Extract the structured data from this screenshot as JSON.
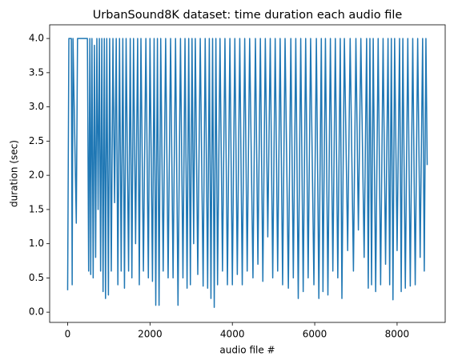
{
  "chart_data": {
    "type": "line",
    "title": "UrbanSound8K dataset: time duration each audio file",
    "x_label": "audio file #",
    "y_label": "duration (sec)",
    "x": [
      0,
      30,
      90,
      110,
      130,
      210,
      240,
      480,
      510,
      540,
      560,
      590,
      620,
      650,
      680,
      710,
      740,
      770,
      800,
      830,
      860,
      890,
      920,
      950,
      990,
      1020,
      1060,
      1100,
      1140,
      1180,
      1220,
      1260,
      1300,
      1340,
      1380,
      1420,
      1480,
      1520,
      1560,
      1600,
      1650,
      1700,
      1740,
      1780,
      1840,
      1900,
      1960,
      2000,
      2060,
      2100,
      2140,
      2180,
      2220,
      2260,
      2320,
      2380,
      2440,
      2500,
      2560,
      2620,
      2680,
      2740,
      2800,
      2850,
      2900,
      2940,
      2980,
      3020,
      3060,
      3100,
      3160,
      3220,
      3290,
      3340,
      3400,
      3440,
      3480,
      3520,
      3560,
      3600,
      3640,
      3700,
      3760,
      3820,
      3880,
      3940,
      4000,
      4060,
      4120,
      4180,
      4240,
      4300,
      4360,
      4420,
      4500,
      4560,
      4620,
      4680,
      4740,
      4800,
      4860,
      4920,
      4980,
      5040,
      5100,
      5160,
      5220,
      5280,
      5360,
      5420,
      5480,
      5540,
      5600,
      5660,
      5720,
      5780,
      5840,
      5900,
      5980,
      6040,
      6100,
      6160,
      6200,
      6260,
      6320,
      6380,
      6440,
      6500,
      6560,
      6620,
      6660,
      6720,
      6800,
      6860,
      6940,
      7000,
      7060,
      7120,
      7200,
      7260,
      7300,
      7340,
      7380,
      7420,
      7480,
      7540,
      7600,
      7660,
      7720,
      7780,
      7820,
      7860,
      7900,
      7940,
      8000,
      8060,
      8100,
      8140,
      8200,
      8260,
      8320,
      8380,
      8440,
      8500,
      8560,
      8620,
      8660,
      8700,
      8731
    ],
    "series": [
      {
        "color": "#1f77b4",
        "values": [
          0.32,
          4,
          4,
          0.4,
          4,
          1.3,
          4,
          4,
          0.6,
          4,
          0.55,
          4,
          0.5,
          3.9,
          0.8,
          4,
          1.5,
          4,
          0.6,
          4,
          0.3,
          4,
          0.2,
          4,
          0.25,
          4,
          0.6,
          4,
          1.6,
          4,
          0.4,
          4,
          0.6,
          4,
          0.35,
          4,
          0.6,
          4,
          0.5,
          4,
          1.0,
          4,
          0.4,
          4,
          0.6,
          4,
          0.5,
          4,
          0.45,
          4,
          0.1,
          4,
          0.1,
          4,
          0.6,
          4,
          0.5,
          4,
          0.5,
          4,
          0.1,
          4,
          0.5,
          4,
          0.35,
          4,
          0.4,
          4,
          1.0,
          4,
          0.55,
          4,
          0.38,
          4,
          0.35,
          4,
          0.2,
          4,
          0.07,
          4,
          0.4,
          4,
          0.6,
          4,
          0.4,
          4,
          0.4,
          4,
          0.55,
          4,
          0.4,
          4,
          0.6,
          4,
          0.5,
          4,
          0.7,
          4,
          0.45,
          4,
          1.1,
          4,
          0.5,
          4,
          0.6,
          4,
          0.4,
          4,
          0.35,
          4,
          0.5,
          4,
          0.2,
          4,
          0.3,
          4,
          0.5,
          4,
          0.4,
          4,
          0.2,
          4,
          0.3,
          4,
          0.25,
          4,
          0.6,
          4,
          0.5,
          4,
          0.2,
          4,
          0.9,
          4,
          0.6,
          4,
          1.2,
          4,
          0.8,
          4,
          0.35,
          4,
          0.4,
          4,
          0.3,
          4,
          0.4,
          4,
          0.7,
          4,
          0.4,
          4,
          0.18,
          4,
          0.9,
          4,
          0.3,
          4,
          0.35,
          4,
          0.38,
          4,
          0.4,
          4,
          0.8,
          4,
          0.6,
          4,
          2.15
        ]
      }
    ],
    "xlim": [
      -437,
      9168
    ],
    "ylim": [
      -0.15,
      4.2
    ],
    "xticks": [
      0,
      2000,
      4000,
      6000,
      8000
    ],
    "yticks": [
      {
        "value": 0,
        "label": "0.0"
      },
      {
        "value": 0.5,
        "label": "0.5"
      },
      {
        "value": 1,
        "label": "1.0"
      },
      {
        "value": 1.5,
        "label": "1.5"
      },
      {
        "value": 2,
        "label": "2.0"
      },
      {
        "value": 2.5,
        "label": "2.5"
      },
      {
        "value": 3,
        "label": "3.0"
      },
      {
        "value": 3.5,
        "label": "3.5"
      },
      {
        "value": 4,
        "label": "4.0"
      }
    ]
  }
}
